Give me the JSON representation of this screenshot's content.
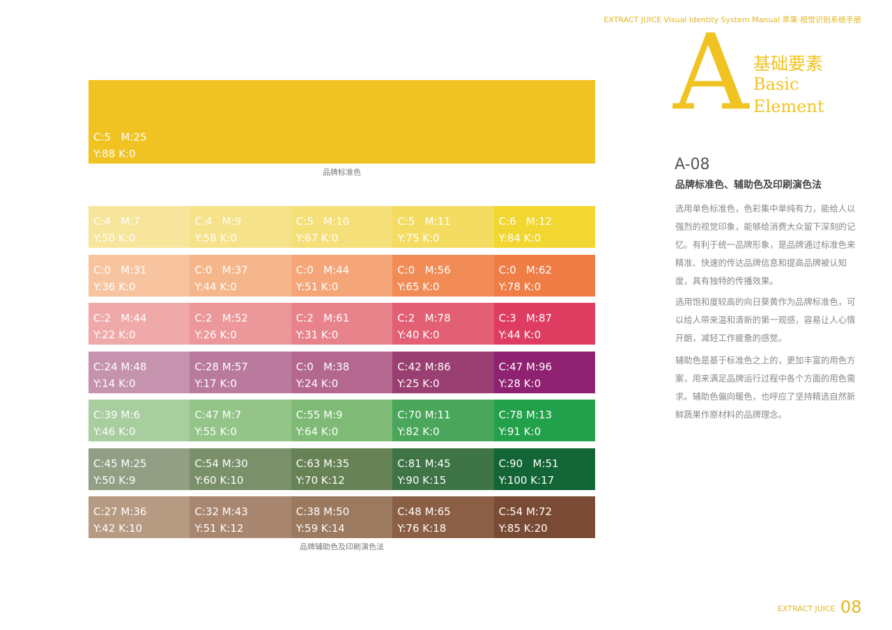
{
  "header": {
    "text": "EXTRACT JUICE Visual Identity System Manual 萃果·视觉识别系统手册"
  },
  "section": {
    "letter": "A",
    "title_cn": "基础要素",
    "title_en": [
      "Basic",
      "Element"
    ]
  },
  "article": {
    "code": "A-08",
    "heading": "品牌标准色、辅助色及印刷演色法",
    "paragraphs": [
      "选用单色标准色，色彩集中单纯有力，能给人以强烈的视觉印象，能够给消费大众留下深刻的记忆。有利于统一品牌形象，是品牌通过标准色来精准、快速的传达品牌信息和提高品牌被认知度，具有独特的传播效果。",
      "选用饱和度较高的向日葵黄作为品牌标准色，可以给人带来温和清新的第一观感，容易让人心情开朗，减轻工作疲惫的感觉。",
      "辅助色是基于标准色之上的，更加丰富的用色方案，用来满足品牌运行过程中各个方面的用色需求。辅助色偏向暖色，也呼应了坚持精选自然新鲜蔬果作原材料的品牌理念。"
    ]
  },
  "primary": {
    "color": "#f0c322",
    "line1": "C:5   M:25",
    "line2": "Y:88 K:0",
    "caption": "品牌标准色"
  },
  "palette": {
    "caption": "品牌辅助色及印刷演色法",
    "rows": [
      {
        "cells": [
          {
            "color": "#f6e59a",
            "line1": "C:4   M:7",
            "line2": "Y:50 K:0"
          },
          {
            "color": "#f5e28a",
            "line1": "C:4   M:9",
            "line2": "Y:58 K:0"
          },
          {
            "color": "#f5df78",
            "line1": "C:5   M:10",
            "line2": "Y:67 K:0"
          },
          {
            "color": "#f4dc62",
            "line1": "C:5   M:11",
            "line2": "Y:75 K:0"
          },
          {
            "color": "#f2d632",
            "line1": "C:6   M:12",
            "line2": "Y:84 K:0"
          }
        ]
      },
      {
        "cells": [
          {
            "color": "#f8c4a0",
            "line1": "C:0   M:31",
            "line2": "Y:36 K:0"
          },
          {
            "color": "#f6b68c",
            "line1": "C:0   M:37",
            "line2": "Y:44 K:0"
          },
          {
            "color": "#f4a678",
            "line1": "C:0   M:44",
            "line2": "Y:51 K:0"
          },
          {
            "color": "#f28c57",
            "line1": "C:0   M:56",
            "line2": "Y:65 K:0"
          },
          {
            "color": "#ef7d45",
            "line1": "C:0   M:62",
            "line2": "Y:78 K:0"
          }
        ]
      },
      {
        "cells": [
          {
            "color": "#f0a9a9",
            "line1": "C:2   M:44",
            "line2": "Y:22 K:0"
          },
          {
            "color": "#ec979a",
            "line1": "C:2   M:52",
            "line2": "Y:26 K:0"
          },
          {
            "color": "#e8838b",
            "line1": "C:2   M:61",
            "line2": "Y:31 K:0"
          },
          {
            "color": "#e25f74",
            "line1": "C:2   M:78",
            "line2": "Y:40 K:0"
          },
          {
            "color": "#de3d61",
            "line1": "C:3   M:87",
            "line2": "Y:44 K:0"
          }
        ]
      },
      {
        "cells": [
          {
            "color": "#c693af",
            "line1": "C:24 M:48",
            "line2": "Y:14 K:0"
          },
          {
            "color": "#b97a9d",
            "line1": "C:28 M:57",
            "line2": "Y:17 K:0"
          },
          {
            "color": "#b4688f",
            "line1": "C:0   M:38",
            "line2": "Y:24 K:0"
          },
          {
            "color": "#9a3f71",
            "line1": "C:42 M:86",
            "line2": "Y:25 K:0"
          },
          {
            "color": "#8e2170",
            "line1": "C:47 M:96",
            "line2": "Y:28 K:0"
          }
        ]
      },
      {
        "cells": [
          {
            "color": "#a8cd9e",
            "line1": "C:39 M:6",
            "line2": "Y:46 K:0"
          },
          {
            "color": "#94c488",
            "line1": "C:47 M:7",
            "line2": "Y:55 K:0"
          },
          {
            "color": "#7fbb76",
            "line1": "C:55 M:9",
            "line2": "Y:64 K:0"
          },
          {
            "color": "#4aa65a",
            "line1": "C:70 M:11",
            "line2": "Y:82 K:0"
          },
          {
            "color": "#22a04a",
            "line1": "C:78 M:13",
            "line2": "Y:91 K:0"
          }
        ]
      },
      {
        "cells": [
          {
            "color": "#929f84",
            "line1": "C:45 M:25",
            "line2": "Y:50 K:9"
          },
          {
            "color": "#7a906a",
            "line1": "C:54 M:30",
            "line2": "Y:60 K:10"
          },
          {
            "color": "#678356",
            "line1": "C:63 M:35",
            "line2": "Y:70 K:12"
          },
          {
            "color": "#3f7446",
            "line1": "C:81 M:45",
            "line2": "Y:90 K:15"
          },
          {
            "color": "#136536",
            "line1": "C:90   M:51",
            "line2": "Y:100 K:17"
          }
        ]
      },
      {
        "cells": [
          {
            "color": "#b69a82",
            "line1": "C:27 M:36",
            "line2": "Y:42 K:10"
          },
          {
            "color": "#a98670",
            "line1": "C:32 M:43",
            "line2": "Y:51 K:12"
          },
          {
            "color": "#9b7a5f",
            "line1": "C:38 M:50",
            "line2": "Y:59 K:14"
          },
          {
            "color": "#8b5f45",
            "line1": "C:48 M:65",
            "line2": "Y:76 K:18"
          },
          {
            "color": "#7a4b34",
            "line1": "C:54 M:72",
            "line2": "Y:85 K:20"
          }
        ]
      }
    ]
  },
  "footer": {
    "brand": "EXTRACT JUICE",
    "page": "08"
  }
}
